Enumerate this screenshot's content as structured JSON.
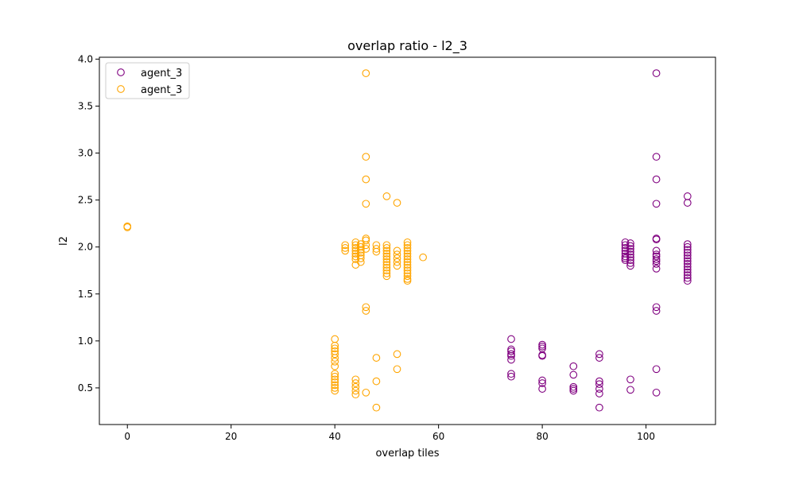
{
  "chart_data": {
    "type": "scatter",
    "title": "overlap ratio - l2_3",
    "xlabel": "overlap tiles",
    "ylabel": "l2",
    "xlim": [
      -5.4,
      113.4
    ],
    "ylim": [
      0.11,
      4.02
    ],
    "xticks": [
      0,
      20,
      40,
      60,
      80,
      100
    ],
    "yticks": [
      0.5,
      1.0,
      1.5,
      2.0,
      2.5,
      3.0,
      3.5,
      4.0
    ],
    "xtick_labels": [
      "0",
      "20",
      "40",
      "60",
      "80",
      "100"
    ],
    "ytick_labels": [
      "0.5",
      "1.0",
      "1.5",
      "2.0",
      "2.5",
      "3.0",
      "3.5",
      "4.0"
    ],
    "grid": false,
    "legend_position": "upper left",
    "marker": "open-circle",
    "series": [
      {
        "name": "agent_3",
        "color": "#800080",
        "points": [
          [
            74,
            1.02
          ],
          [
            74,
            0.91
          ],
          [
            74,
            0.89
          ],
          [
            74,
            0.86
          ],
          [
            74,
            0.84
          ],
          [
            74,
            0.8
          ],
          [
            74,
            0.65
          ],
          [
            74,
            0.62
          ],
          [
            80,
            0.96
          ],
          [
            80,
            0.94
          ],
          [
            80,
            0.92
          ],
          [
            80,
            0.85
          ],
          [
            80,
            0.84
          ],
          [
            80,
            0.58
          ],
          [
            80,
            0.55
          ],
          [
            80,
            0.49
          ],
          [
            86,
            0.73
          ],
          [
            86,
            0.64
          ],
          [
            86,
            0.51
          ],
          [
            86,
            0.49
          ],
          [
            86,
            0.47
          ],
          [
            91,
            0.86
          ],
          [
            91,
            0.82
          ],
          [
            91,
            0.57
          ],
          [
            91,
            0.54
          ],
          [
            91,
            0.49
          ],
          [
            91,
            0.44
          ],
          [
            91,
            0.29
          ],
          [
            96,
            2.05
          ],
          [
            96,
            2.02
          ],
          [
            96,
            1.99
          ],
          [
            96,
            1.96
          ],
          [
            96,
            1.93
          ],
          [
            96,
            1.9
          ],
          [
            96,
            1.88
          ],
          [
            96,
            1.86
          ],
          [
            97,
            2.04
          ],
          [
            97,
            2.01
          ],
          [
            97,
            1.98
          ],
          [
            97,
            1.95
          ],
          [
            97,
            1.92
          ],
          [
            97,
            1.89
          ],
          [
            97,
            1.86
          ],
          [
            97,
            1.83
          ],
          [
            97,
            1.8
          ],
          [
            97,
            0.59
          ],
          [
            97,
            0.48
          ],
          [
            102,
            3.85
          ],
          [
            102,
            2.96
          ],
          [
            102,
            2.72
          ],
          [
            102,
            2.46
          ],
          [
            102,
            2.09
          ],
          [
            102,
            2.08
          ],
          [
            102,
            1.96
          ],
          [
            102,
            1.92
          ],
          [
            102,
            1.9
          ],
          [
            102,
            1.87
          ],
          [
            102,
            1.85
          ],
          [
            102,
            1.82
          ],
          [
            102,
            1.77
          ],
          [
            102,
            1.36
          ],
          [
            102,
            1.32
          ],
          [
            102,
            0.7
          ],
          [
            102,
            0.45
          ],
          [
            108,
            2.54
          ],
          [
            108,
            2.47
          ],
          [
            108,
            2.03
          ],
          [
            108,
            2.0
          ],
          [
            108,
            1.97
          ],
          [
            108,
            1.94
          ],
          [
            108,
            1.91
          ],
          [
            108,
            1.88
          ],
          [
            108,
            1.85
          ],
          [
            108,
            1.82
          ],
          [
            108,
            1.79
          ],
          [
            108,
            1.76
          ],
          [
            108,
            1.73
          ],
          [
            108,
            1.7
          ],
          [
            108,
            1.67
          ],
          [
            108,
            1.64
          ]
        ]
      },
      {
        "name": "agent_3",
        "color": "#FFA500",
        "points": [
          [
            0,
            2.22
          ],
          [
            0,
            2.21
          ],
          [
            40,
            1.02
          ],
          [
            40,
            0.95
          ],
          [
            40,
            0.92
          ],
          [
            40,
            0.89
          ],
          [
            40,
            0.86
          ],
          [
            40,
            0.82
          ],
          [
            40,
            0.78
          ],
          [
            40,
            0.73
          ],
          [
            40,
            0.65
          ],
          [
            40,
            0.62
          ],
          [
            40,
            0.59
          ],
          [
            40,
            0.56
          ],
          [
            40,
            0.53
          ],
          [
            40,
            0.5
          ],
          [
            40,
            0.47
          ],
          [
            42,
            2.02
          ],
          [
            42,
            1.99
          ],
          [
            42,
            1.96
          ],
          [
            44,
            2.05
          ],
          [
            44,
            2.02
          ],
          [
            44,
            1.99
          ],
          [
            44,
            1.96
          ],
          [
            44,
            1.93
          ],
          [
            44,
            1.9
          ],
          [
            44,
            1.87
          ],
          [
            44,
            1.81
          ],
          [
            44,
            0.59
          ],
          [
            44,
            0.55
          ],
          [
            44,
            0.51
          ],
          [
            44,
            0.47
          ],
          [
            44,
            0.43
          ],
          [
            45,
            2.03
          ],
          [
            45,
            2.0
          ],
          [
            45,
            1.97
          ],
          [
            45,
            1.94
          ],
          [
            45,
            1.91
          ],
          [
            45,
            1.88
          ],
          [
            45,
            1.84
          ],
          [
            46,
            3.85
          ],
          [
            46,
            2.96
          ],
          [
            46,
            2.72
          ],
          [
            46,
            2.46
          ],
          [
            46,
            2.09
          ],
          [
            46,
            2.07
          ],
          [
            46,
            2.02
          ],
          [
            46,
            1.98
          ],
          [
            46,
            1.36
          ],
          [
            46,
            1.32
          ],
          [
            46,
            0.45
          ],
          [
            48,
            2.02
          ],
          [
            48,
            1.98
          ],
          [
            48,
            1.95
          ],
          [
            48,
            0.82
          ],
          [
            48,
            0.57
          ],
          [
            48,
            0.29
          ],
          [
            50,
            2.54
          ],
          [
            50,
            2.02
          ],
          [
            50,
            1.99
          ],
          [
            50,
            1.96
          ],
          [
            50,
            1.93
          ],
          [
            50,
            1.9
          ],
          [
            50,
            1.87
          ],
          [
            50,
            1.84
          ],
          [
            50,
            1.81
          ],
          [
            50,
            1.78
          ],
          [
            50,
            1.75
          ],
          [
            50,
            1.72
          ],
          [
            50,
            1.69
          ],
          [
            52,
            2.47
          ],
          [
            52,
            1.96
          ],
          [
            52,
            1.92
          ],
          [
            52,
            1.88
          ],
          [
            52,
            1.84
          ],
          [
            52,
            1.8
          ],
          [
            52,
            0.86
          ],
          [
            52,
            0.7
          ],
          [
            54,
            2.05
          ],
          [
            54,
            2.02
          ],
          [
            54,
            1.99
          ],
          [
            54,
            1.96
          ],
          [
            54,
            1.93
          ],
          [
            54,
            1.9
          ],
          [
            54,
            1.87
          ],
          [
            54,
            1.84
          ],
          [
            54,
            1.81
          ],
          [
            54,
            1.78
          ],
          [
            54,
            1.75
          ],
          [
            54,
            1.72
          ],
          [
            54,
            1.69
          ],
          [
            54,
            1.66
          ],
          [
            54,
            1.64
          ],
          [
            57,
            1.89
          ]
        ]
      }
    ]
  }
}
